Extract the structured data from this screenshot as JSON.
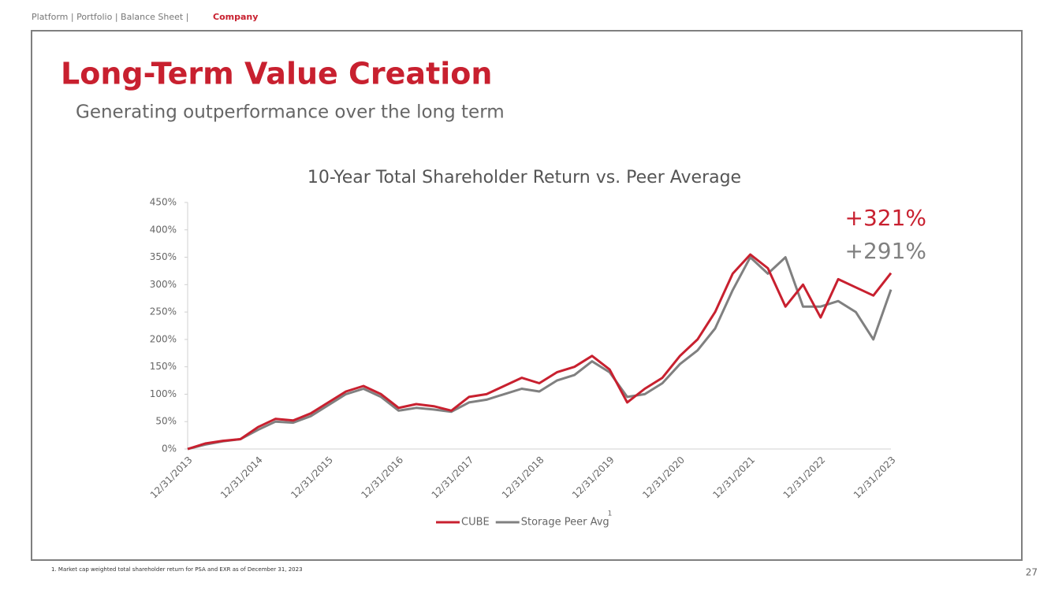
{
  "header": {
    "breadcrumb": "Platform | Portfolio | Balance Sheet |",
    "breadcrumb_active": "Company",
    "title": "Long-Term Value Creation",
    "subtitle": "Generating outperformance over the long term"
  },
  "chart_data": {
    "type": "line",
    "title": "10-Year Total Shareholder Return vs. Peer Average",
    "categories": [
      "12/31/2013",
      null,
      null,
      null,
      "12/31/2014",
      null,
      null,
      null,
      "12/31/2015",
      null,
      null,
      null,
      "12/31/2016",
      null,
      null,
      null,
      "12/31/2017",
      null,
      null,
      null,
      "12/31/2018",
      null,
      null,
      null,
      "12/31/2019",
      null,
      null,
      null,
      "12/31/2020",
      null,
      null,
      null,
      "12/31/2021",
      null,
      null,
      null,
      "12/31/2022",
      null,
      null,
      null,
      "12/31/2023"
    ],
    "series": [
      {
        "name": "CUBE",
        "color": "#c8202f",
        "values": [
          0,
          10,
          15,
          18,
          40,
          55,
          52,
          65,
          85,
          105,
          115,
          100,
          75,
          82,
          78,
          70,
          95,
          100,
          115,
          130,
          120,
          140,
          150,
          170,
          145,
          85,
          110,
          130,
          170,
          200,
          250,
          320,
          355,
          330,
          260,
          300,
          240,
          310,
          295,
          280,
          321
        ]
      },
      {
        "name": "Storage Peer Avg",
        "color": "#808080",
        "values": [
          0,
          8,
          14,
          18,
          35,
          50,
          48,
          60,
          80,
          100,
          110,
          95,
          70,
          75,
          72,
          68,
          85,
          90,
          100,
          110,
          105,
          125,
          135,
          160,
          140,
          95,
          100,
          120,
          155,
          180,
          220,
          290,
          350,
          320,
          350,
          260,
          260,
          270,
          250,
          200,
          291
        ]
      }
    ],
    "legend_footnote_marker": "1",
    "annotations": [
      "+321%",
      "+291%"
    ],
    "ylim": [
      0,
      450
    ],
    "yticks": [
      {
        "value": 0,
        "label": "0%"
      },
      {
        "value": 50,
        "label": "50%"
      },
      {
        "value": 100,
        "label": "100%"
      },
      {
        "value": 150,
        "label": "150%"
      },
      {
        "value": 200,
        "label": "200%"
      },
      {
        "value": 250,
        "label": "250%"
      },
      {
        "value": 300,
        "label": "300%"
      },
      {
        "value": 350,
        "label": "350%"
      },
      {
        "value": 400,
        "label": "400%"
      },
      {
        "value": 450,
        "label": "450%"
      }
    ],
    "grid": false,
    "legend": "bottom"
  },
  "footnote": "1.   Market cap weighted total shareholder return for PSA and EXR as of December 31, 2023",
  "page_number": "27"
}
